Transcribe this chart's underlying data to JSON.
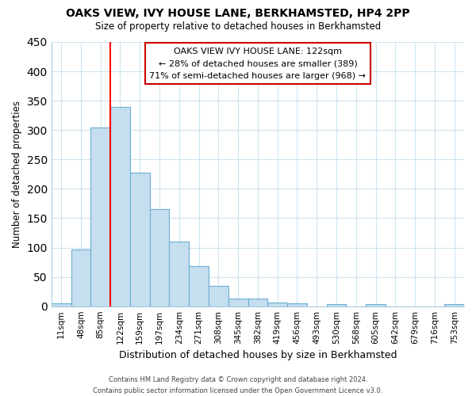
{
  "title": "OAKS VIEW, IVY HOUSE LANE, BERKHAMSTED, HP4 2PP",
  "subtitle": "Size of property relative to detached houses in Berkhamsted",
  "xlabel": "Distribution of detached houses by size in Berkhamsted",
  "ylabel": "Number of detached properties",
  "bar_labels": [
    "11sqm",
    "48sqm",
    "85sqm",
    "122sqm",
    "159sqm",
    "197sqm",
    "234sqm",
    "271sqm",
    "308sqm",
    "345sqm",
    "382sqm",
    "419sqm",
    "456sqm",
    "493sqm",
    "530sqm",
    "568sqm",
    "605sqm",
    "642sqm",
    "679sqm",
    "716sqm",
    "753sqm"
  ],
  "bar_values": [
    5,
    97,
    305,
    340,
    228,
    165,
    110,
    69,
    35,
    13,
    13,
    6,
    5,
    0,
    4,
    0,
    3,
    0,
    0,
    0,
    3
  ],
  "bar_color": "#c5dff0",
  "bar_edge_color": "#6aadd5",
  "vline_x_index": 3,
  "vline_color": "red",
  "ylim": [
    0,
    450
  ],
  "yticks": [
    0,
    50,
    100,
    150,
    200,
    250,
    300,
    350,
    400,
    450
  ],
  "annotation_title": "OAKS VIEW IVY HOUSE LANE: 122sqm",
  "annotation_line1": "← 28% of detached houses are smaller (389)",
  "annotation_line2": "71% of semi-detached houses are larger (968) →",
  "annotation_box_edgecolor": "#cc0000",
  "footer_line1": "Contains HM Land Registry data © Crown copyright and database right 2024.",
  "footer_line2": "Contains public sector information licensed under the Open Government Licence v3.0.",
  "background_color": "#ffffff",
  "grid_color": "#cde4f0"
}
